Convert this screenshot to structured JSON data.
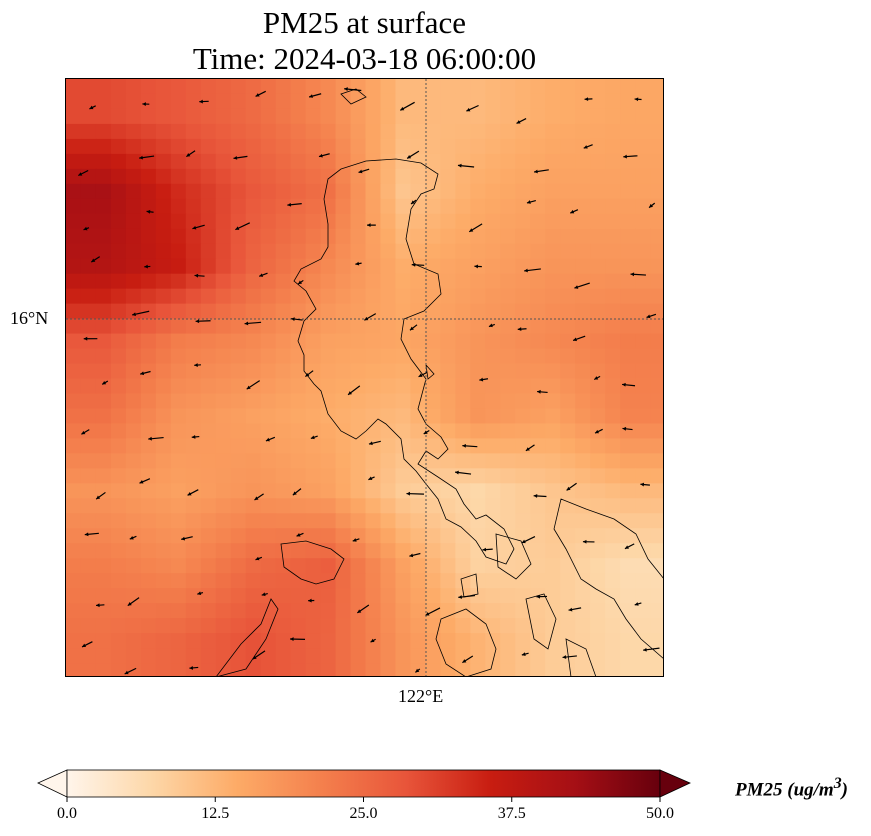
{
  "title": {
    "line1": "PM25 at surface",
    "line2": "Time: 2024-03-18 06:00:00"
  },
  "axes": {
    "ylabel_tick": "16°N",
    "xlabel_tick": "122°E"
  },
  "colorbar": {
    "label": "PM25 (ug/m",
    "label_sup": "3",
    "label_end": ")",
    "ticks": [
      "0.0",
      "12.5",
      "25.0",
      "37.5",
      "50.0"
    ],
    "range": [
      0,
      50
    ],
    "colormap": [
      "#fff5eb",
      "#fdd7a8",
      "#fdab67",
      "#f4804d",
      "#e8553a",
      "#c81d11",
      "#a50f15",
      "#67000d"
    ]
  },
  "chart_data": {
    "type": "heatmap",
    "title": "PM25 at surface — Time: 2024-03-18 06:00:00",
    "variable": "PM25 (ug/m3)",
    "vlim": [
      0,
      50
    ],
    "grid_note": "approximate coarse field, rows north to south, columns west to east",
    "grid": [
      [
        30,
        28,
        25,
        20,
        12,
        12,
        14,
        15
      ],
      [
        42,
        34,
        28,
        24,
        10,
        14,
        16,
        16
      ],
      [
        40,
        36,
        26,
        20,
        14,
        16,
        18,
        18
      ],
      [
        28,
        22,
        20,
        16,
        15,
        18,
        20,
        22
      ],
      [
        24,
        18,
        16,
        14,
        12,
        18,
        16,
        21
      ],
      [
        18,
        16,
        18,
        16,
        9,
        7,
        10,
        12
      ],
      [
        22,
        20,
        25,
        27,
        16,
        8,
        9,
        6
      ],
      [
        24,
        26,
        29,
        26,
        18,
        13,
        9,
        7
      ]
    ],
    "gridlines": {
      "lat": "16°N",
      "lon": "122°E"
    }
  }
}
